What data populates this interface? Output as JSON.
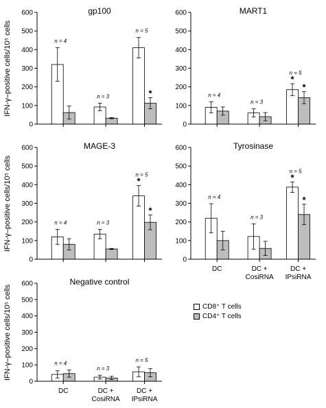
{
  "figure": {
    "ylabel": "IFN-γ–positive cells/10⁵ cells",
    "categories": [
      "DC",
      "DC +\nCosiRNA",
      "DC +\nIPsiRNA"
    ],
    "series_names": [
      "CD8⁺ T cells",
      "CD4⁺ T cells"
    ],
    "colors": {
      "CD8": "#ffffff",
      "CD4": "#bdbdbd",
      "axis": "#000000"
    },
    "yticks": [
      0,
      100,
      200,
      300,
      400,
      500,
      600
    ]
  },
  "legend": {
    "cd8_label": "CD8⁺ T cells",
    "cd4_label": "CD4⁺ T cells"
  },
  "chart_data": [
    {
      "type": "bar",
      "title": "gp100",
      "categories": [
        "DC",
        "DC + CosiRNA",
        "DC + IPsiRNA"
      ],
      "ylim": [
        0,
        600
      ],
      "n_labels": [
        "n = 4",
        "n = 3",
        "n = 5"
      ],
      "series": [
        {
          "name": "CD8⁺ T cells",
          "values": [
            320,
            92,
            410
          ],
          "errors": [
            90,
            20,
            55
          ],
          "stars": [
            false,
            false,
            false
          ]
        },
        {
          "name": "CD4⁺ T cells",
          "values": [
            62,
            32,
            112
          ],
          "errors": [
            35,
            3,
            30
          ],
          "stars": [
            false,
            false,
            true
          ]
        }
      ]
    },
    {
      "type": "bar",
      "title": "MART1",
      "categories": [
        "DC",
        "DC + CosiRNA",
        "DC + IPsiRNA"
      ],
      "ylim": [
        0,
        600
      ],
      "n_labels": [
        "n = 4",
        "n = 3",
        "n = 5"
      ],
      "series": [
        {
          "name": "CD8⁺ T cells",
          "values": [
            90,
            60,
            185
          ],
          "errors": [
            30,
            22,
            32
          ],
          "stars": [
            false,
            false,
            true
          ]
        },
        {
          "name": "CD4⁺ T cells",
          "values": [
            70,
            40,
            142
          ],
          "errors": [
            22,
            22,
            32
          ],
          "stars": [
            false,
            false,
            true
          ]
        }
      ]
    },
    {
      "type": "bar",
      "title": "MAGE-3",
      "categories": [
        "DC",
        "DC + CosiRNA",
        "DC + IPsiRNA"
      ],
      "ylim": [
        0,
        600
      ],
      "n_labels": [
        "n = 4",
        "n = 3",
        "n = 5"
      ],
      "series": [
        {
          "name": "CD8⁺ T cells",
          "values": [
            120,
            135,
            340
          ],
          "errors": [
            40,
            25,
            55
          ],
          "stars": [
            false,
            false,
            true
          ]
        },
        {
          "name": "CD4⁺ T cells",
          "values": [
            80,
            55,
            198
          ],
          "errors": [
            30,
            3,
            40
          ],
          "stars": [
            false,
            false,
            true
          ]
        }
      ]
    },
    {
      "type": "bar",
      "title": "Tyrosinase",
      "categories": [
        "DC",
        "DC + CosiRNA",
        "DC + IPsiRNA"
      ],
      "ylim": [
        0,
        600
      ],
      "n_labels": [
        "n = 4",
        "n = 3",
        "n = 5"
      ],
      "series": [
        {
          "name": "CD8⁺ T cells",
          "values": [
            220,
            122,
            387
          ],
          "errors": [
            78,
            68,
            28
          ],
          "stars": [
            false,
            false,
            true
          ]
        },
        {
          "name": "CD4⁺ T cells",
          "values": [
            100,
            58,
            240
          ],
          "errors": [
            50,
            38,
            55
          ],
          "stars": [
            false,
            false,
            true
          ]
        }
      ]
    },
    {
      "type": "bar",
      "title": "Negative control",
      "categories": [
        "DC",
        "DC + CosiRNA",
        "DC + IPsiRNA"
      ],
      "ylim": [
        0,
        600
      ],
      "n_labels": [
        "n = 4",
        "n = 3",
        "n = 5"
      ],
      "series": [
        {
          "name": "CD8⁺ T cells",
          "values": [
            42,
            25,
            58
          ],
          "errors": [
            22,
            12,
            30
          ],
          "stars": [
            false,
            false,
            false
          ]
        },
        {
          "name": "CD4⁺ T cells",
          "values": [
            47,
            20,
            52
          ],
          "errors": [
            22,
            10,
            25
          ],
          "stars": [
            false,
            false,
            false
          ]
        }
      ]
    }
  ]
}
